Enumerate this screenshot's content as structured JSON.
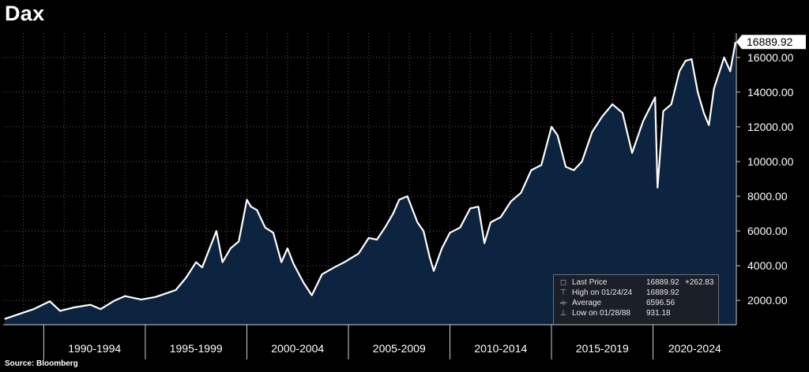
{
  "title": "Dax",
  "source": "Source: Bloomberg",
  "last_price_label": "16889.92",
  "chart_data": {
    "type": "area",
    "title": "Dax",
    "xlabel": "",
    "ylabel": "",
    "x_range": [
      1988.0,
      2024.1
    ],
    "ylim": [
      600,
      17400
    ],
    "y_ticks": [
      2000,
      4000,
      6000,
      8000,
      10000,
      12000,
      14000,
      16000
    ],
    "y_tick_labels": [
      "2000.00",
      "4000.00",
      "6000.00",
      "8000.00",
      "10000.00",
      "12000.00",
      "14000.00",
      "16000.00"
    ],
    "x_tick_labels": [
      "1990-1994",
      "1995-1999",
      "2000-2004",
      "2005-2009",
      "2010-2014",
      "2015-2019",
      "2020-2024"
    ],
    "x_tick_periods": [
      [
        1990,
        1995
      ],
      [
        1995,
        2000
      ],
      [
        2000,
        2005
      ],
      [
        2005,
        2010
      ],
      [
        2010,
        2015
      ],
      [
        2015,
        2020
      ],
      [
        2020,
        2025
      ]
    ],
    "grid": true,
    "legend_position": "bottom-right",
    "series": [
      {
        "name": "Last Price",
        "color": "#ffffff",
        "fill": "#0d2440",
        "x": [
          1988.07,
          1989.0,
          1989.5,
          1990.3,
          1990.8,
          1991.5,
          1992.3,
          1992.8,
          1993.5,
          1994.0,
          1994.8,
          1995.5,
          1996.0,
          1996.5,
          1997.0,
          1997.5,
          1997.8,
          1998.2,
          1998.5,
          1998.8,
          1999.2,
          1999.6,
          2000.0,
          2000.2,
          2000.5,
          2000.9,
          2001.3,
          2001.7,
          2002.0,
          2002.3,
          2002.8,
          2003.2,
          2003.7,
          2004.3,
          2004.8,
          2005.5,
          2006.0,
          2006.4,
          2006.8,
          2007.2,
          2007.5,
          2007.9,
          2008.4,
          2008.7,
          2009.0,
          2009.2,
          2009.6,
          2010.0,
          2010.5,
          2011.0,
          2011.4,
          2011.7,
          2012.0,
          2012.5,
          2013.0,
          2013.5,
          2014.0,
          2014.5,
          2015.0,
          2015.3,
          2015.7,
          2016.1,
          2016.5,
          2017.0,
          2017.5,
          2018.0,
          2018.5,
          2018.97,
          2019.5,
          2020.1,
          2020.22,
          2020.5,
          2020.9,
          2021.3,
          2021.6,
          2021.9,
          2022.2,
          2022.5,
          2022.75,
          2023.0,
          2023.5,
          2023.8,
          2024.06
        ],
        "values": [
          931,
          1300,
          1500,
          1950,
          1400,
          1600,
          1750,
          1500,
          2000,
          2250,
          2050,
          2200,
          2400,
          2600,
          3300,
          4200,
          3900,
          5100,
          6000,
          4200,
          5000,
          5400,
          7800,
          7400,
          7200,
          6200,
          5900,
          4200,
          5000,
          4100,
          3000,
          2300,
          3500,
          3900,
          4200,
          4700,
          5600,
          5500,
          6200,
          7000,
          7800,
          8000,
          6500,
          6000,
          4500,
          3700,
          5000,
          5900,
          6200,
          7300,
          7400,
          5300,
          6500,
          6800,
          7700,
          8200,
          9500,
          9800,
          12000,
          11500,
          9700,
          9500,
          10000,
          11700,
          12600,
          13300,
          12800,
          10500,
          12300,
          13700,
          8500,
          12900,
          13300,
          15200,
          15800,
          15900,
          14000,
          12800,
          12100,
          14200,
          16000,
          15200,
          16890
        ]
      }
    ],
    "last_price": 16889.92,
    "legend": [
      {
        "marker": "square",
        "label": "Last Price",
        "value": "16889.92",
        "change": "+262.83"
      },
      {
        "marker": "high",
        "label": "High on 01/24/24",
        "value": "16889.92",
        "change": ""
      },
      {
        "marker": "avg",
        "label": "Average",
        "value": "6596.56",
        "change": ""
      },
      {
        "marker": "low",
        "label": "Low on 01/28/88",
        "value": "931.18",
        "change": ""
      }
    ]
  }
}
